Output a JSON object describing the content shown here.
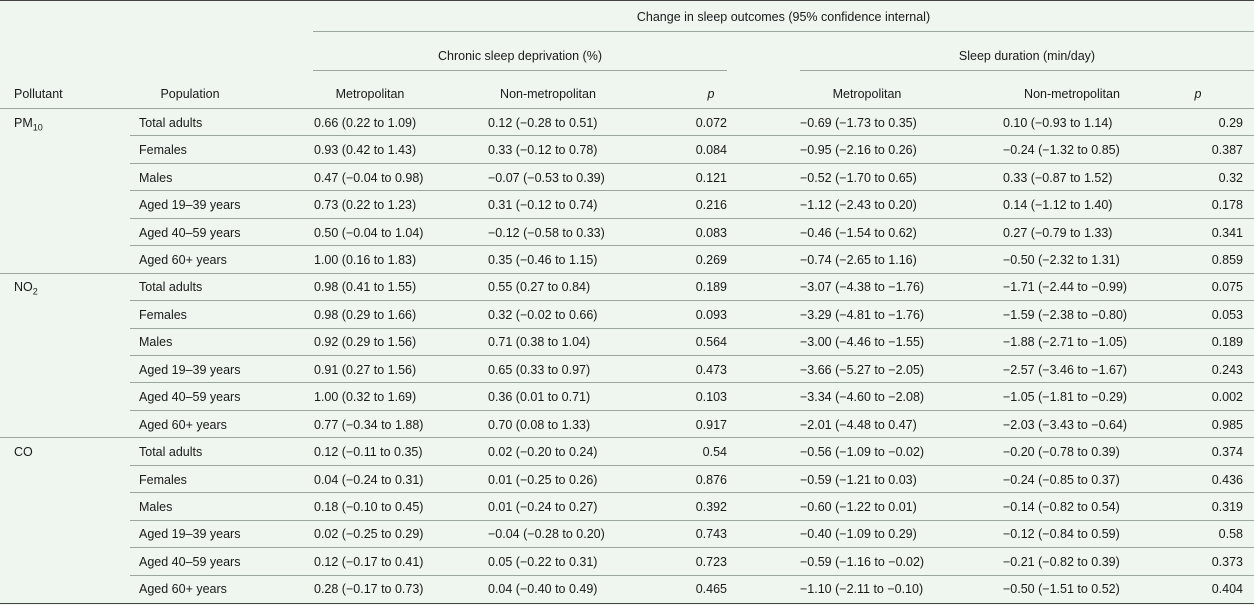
{
  "header": {
    "title": "Change in sleep outcomes (95% confidence internal)",
    "groups": [
      "Chronic sleep deprivation (%)",
      "Sleep duration (min/day)"
    ],
    "columns": [
      "Pollutant",
      "Population",
      "Metropolitan",
      "Non-metropolitan",
      "p",
      "Metropolitan",
      "Non-metropolitan",
      "p"
    ]
  },
  "table": {
    "groups": [
      {
        "pollutant": {
          "name": "PM",
          "sub": "10"
        },
        "rows": [
          [
            "Total adults",
            "0.66 (0.22 to 1.09)",
            "0.12 (−0.28 to 0.51)",
            "0.072",
            "−0.69 (−1.73 to 0.35)",
            "0.10 (−0.93 to 1.14)",
            "0.29"
          ],
          [
            "Females",
            "0.93 (0.42 to 1.43)",
            "0.33 (−0.12 to 0.78)",
            "0.084",
            "−0.95 (−2.16 to 0.26)",
            "−0.24 (−1.32 to 0.85)",
            "0.387"
          ],
          [
            "Males",
            "0.47 (−0.04 to 0.98)",
            "−0.07 (−0.53 to 0.39)",
            "0.121",
            "−0.52 (−1.70 to 0.65)",
            "0.33 (−0.87 to 1.52)",
            "0.32"
          ],
          [
            "Aged 19–39 years",
            "0.73 (0.22 to 1.23)",
            "0.31 (−0.12 to 0.74)",
            "0.216",
            "−1.12 (−2.43 to 0.20)",
            "0.14 (−1.12 to 1.40)",
            "0.178"
          ],
          [
            "Aged 40–59 years",
            "0.50 (−0.04 to 1.04)",
            "−0.12 (−0.58 to 0.33)",
            "0.083",
            "−0.46 (−1.54 to 0.62)",
            "0.27 (−0.79 to 1.33)",
            "0.341"
          ],
          [
            "Aged 60+ years",
            "1.00 (0.16 to 1.83)",
            "0.35 (−0.46 to 1.15)",
            "0.269",
            "−0.74 (−2.65 to 1.16)",
            "−0.50 (−2.32 to 1.31)",
            "0.859"
          ]
        ]
      },
      {
        "pollutant": {
          "name": "NO",
          "sub": "2"
        },
        "rows": [
          [
            "Total adults",
            "0.98 (0.41 to 1.55)",
            "0.55 (0.27 to 0.84)",
            "0.189",
            "−3.07 (−4.38 to −1.76)",
            "−1.71 (−2.44 to −0.99)",
            "0.075"
          ],
          [
            "Females",
            "0.98 (0.29 to 1.66)",
            "0.32 (−0.02 to 0.66)",
            "0.093",
            "−3.29 (−4.81 to −1.76)",
            "−1.59 (−2.38 to −0.80)",
            "0.053"
          ],
          [
            "Males",
            "0.92 (0.29 to 1.56)",
            "0.71 (0.38 to 1.04)",
            "0.564",
            "−3.00 (−4.46 to −1.55)",
            "−1.88 (−2.71 to −1.05)",
            "0.189"
          ],
          [
            "Aged 19–39 years",
            "0.91 (0.27 to 1.56)",
            "0.65 (0.33 to 0.97)",
            "0.473",
            "−3.66 (−5.27 to −2.05)",
            "−2.57 (−3.46 to −1.67)",
            "0.243"
          ],
          [
            "Aged 40–59 years",
            "1.00 (0.32 to 1.69)",
            "0.36 (0.01 to 0.71)",
            "0.103",
            "−3.34 (−4.60 to −2.08)",
            "−1.05 (−1.81 to −0.29)",
            "0.002"
          ],
          [
            "Aged 60+ years",
            "0.77 (−0.34 to 1.88)",
            "0.70 (0.08 to 1.33)",
            "0.917",
            "−2.01 (−4.48 to 0.47)",
            "−2.03 (−3.43 to −0.64)",
            "0.985"
          ]
        ]
      },
      {
        "pollutant": {
          "name": "CO"
        },
        "rows": [
          [
            "Total adults",
            "0.12 (−0.11 to 0.35)",
            "0.02 (−0.20 to 0.24)",
            "0.54",
            "−0.56 (−1.09 to −0.02)",
            "−0.20 (−0.78 to 0.39)",
            "0.374"
          ],
          [
            "Females",
            "0.04 (−0.24 to 0.31)",
            "0.01 (−0.25 to 0.26)",
            "0.876",
            "−0.59 (−1.21 to 0.03)",
            "−0.24 (−0.85 to 0.37)",
            "0.436"
          ],
          [
            "Males",
            "0.18 (−0.10 to 0.45)",
            "0.01 (−0.24 to 0.27)",
            "0.392",
            "−0.60 (−1.22 to 0.01)",
            "−0.14 (−0.82 to 0.54)",
            "0.319"
          ],
          [
            "Aged 19–39 years",
            "0.02 (−0.25 to 0.29)",
            "−0.04 (−0.28 to 0.20)",
            "0.743",
            "−0.40 (−1.09 to 0.29)",
            "−0.12 (−0.84 to 0.59)",
            "0.58"
          ],
          [
            "Aged 40–59 years",
            "0.12 (−0.17 to 0.41)",
            "0.05 (−0.22 to 0.31)",
            "0.723",
            "−0.59 (−1.16 to −0.02)",
            "−0.21 (−0.82 to 0.39)",
            "0.373"
          ],
          [
            "Aged 60+ years",
            "0.28 (−0.17 to 0.73)",
            "0.04 (−0.40 to 0.49)",
            "0.465",
            "−1.10 (−2.11 to −0.10)",
            "−0.50 (−1.51 to 0.52)",
            "0.404"
          ]
        ]
      }
    ]
  }
}
